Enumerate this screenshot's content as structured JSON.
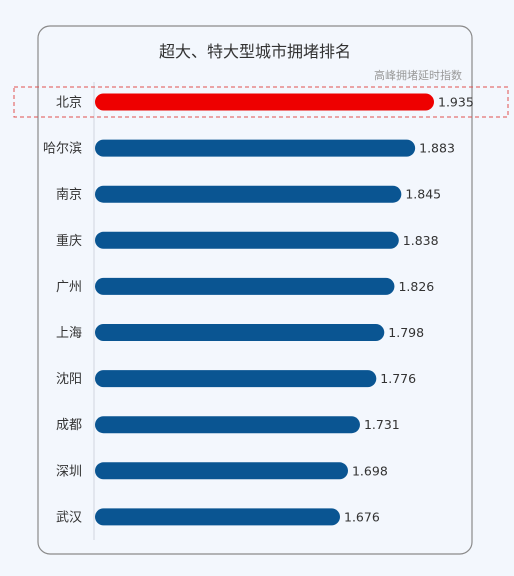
{
  "chart_data": {
    "type": "bar",
    "orientation": "horizontal",
    "title": "超大、特大型城市拥堵排名",
    "value_label": "高峰拥堵延时指数",
    "categories": [
      "北京",
      "哈尔滨",
      "南京",
      "重庆",
      "广州",
      "上海",
      "沈阳",
      "成都",
      "深圳",
      "武汉"
    ],
    "values": [
      1.935,
      1.883,
      1.845,
      1.838,
      1.826,
      1.798,
      1.776,
      1.731,
      1.698,
      1.676
    ],
    "highlight_index": 0,
    "colors": {
      "bar": "#0a5592",
      "highlight_bar": "#ee0000",
      "highlight_box": "#e05050",
      "panel_border": "#8a8a8a",
      "page_bg": "#f3f7fd",
      "text": "#333333",
      "subtitle": "#999999"
    }
  }
}
